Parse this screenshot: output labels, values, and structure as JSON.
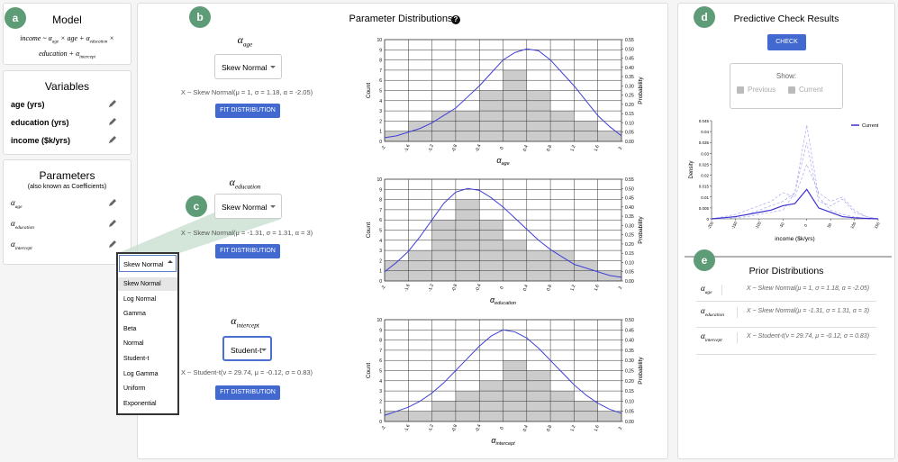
{
  "badges": [
    "a",
    "b",
    "c",
    "d",
    "e"
  ],
  "model": {
    "title": "Model",
    "formula": [
      {
        "text": "income ~ α"
      },
      {
        "text": "age",
        "sub": true
      },
      {
        "text": " × age + α"
      },
      {
        "text": "education",
        "sub": true
      },
      {
        "text": " × education + α"
      },
      {
        "text": "intercept",
        "sub": true
      }
    ]
  },
  "variables": {
    "title": "Variables",
    "items": [
      "age (yrs)",
      "education (yrs)",
      "income ($k/yrs)"
    ]
  },
  "parameters": {
    "title": "Parameters",
    "subtitle": "(also known as Coefficients)",
    "items": [
      {
        "symbol": "α",
        "sub": "age"
      },
      {
        "symbol": "α",
        "sub": "education"
      },
      {
        "symbol": "α",
        "sub": "intercept"
      }
    ]
  },
  "dropdown": {
    "selected": "Skew Normal",
    "options": [
      "Skew Normal",
      "Log Normal",
      "Gamma",
      "Beta",
      "Normal",
      "Student-t",
      "Log Gamma",
      "Uniform",
      "Exponential"
    ]
  },
  "distributions": {
    "title": "Parameter Distributions",
    "help": "?",
    "rows": [
      {
        "name": {
          "symbol": "α",
          "sub": "age"
        },
        "select": "Skew Normal",
        "formula": "X ~ Skew Normal(μ = 1, σ = 1.18, α = -2.05)",
        "button": "FIT DISTRIBUTION",
        "chart": {
          "type": "histogram",
          "bins": [
            -2,
            -1.6,
            -1.2,
            -0.8,
            -0.4,
            0,
            0.4,
            0.8,
            1.2,
            1.6,
            2
          ],
          "counts": [
            1,
            2,
            3,
            3,
            5,
            7,
            5,
            3,
            2,
            1
          ],
          "bar_color": "#cccccc",
          "xlim": [
            -2,
            2
          ],
          "xticks": [
            -2,
            -1.6,
            -1.2,
            -0.8,
            -0.4,
            0,
            0.4,
            0.8,
            1.2,
            1.6,
            2
          ],
          "x_label": {
            "symbol": "α",
            "sub": "age"
          },
          "ylim": [
            0,
            10
          ],
          "yticks": [
            0,
            1,
            2,
            3,
            4,
            5,
            6,
            7,
            8,
            9,
            10
          ],
          "y_label": "Count",
          "y2lim": [
            0,
            0.55
          ],
          "y2ticks": [
            {
              "value": 0,
              "label": "0.00"
            },
            {
              "value": 0.05,
              "label": "0.05"
            },
            {
              "value": 0.1,
              "label": "0.10"
            },
            {
              "value": 0.15,
              "label": "0.15"
            },
            {
              "value": 0.2,
              "label": "0.20"
            },
            {
              "value": 0.25,
              "label": "0.25"
            },
            {
              "value": 0.3,
              "label": "0.30"
            },
            {
              "value": 0.35,
              "label": "0.35"
            },
            {
              "value": 0.4,
              "label": "0.40"
            },
            {
              "value": 0.45,
              "label": "0.45"
            },
            {
              "value": 0.5,
              "label": "0.50"
            },
            {
              "value": 0.55,
              "label": "0.55"
            }
          ],
          "y2_label": "Probability",
          "curve": {
            "axis": "y2",
            "color": "#3f3fd8",
            "x": [
              -2,
              -1.8,
              -1.6,
              -1.4,
              -1.2,
              -1,
              -0.8,
              -0.6,
              -0.4,
              -0.2,
              0,
              0.2,
              0.4,
              0.6,
              0.8,
              1,
              1.2,
              1.4,
              1.6,
              1.8,
              2
            ],
            "values": [
              0.02,
              0.03,
              0.05,
              0.07,
              0.1,
              0.14,
              0.18,
              0.24,
              0.3,
              0.37,
              0.44,
              0.48,
              0.5,
              0.49,
              0.44,
              0.37,
              0.3,
              0.22,
              0.14,
              0.08,
              0.03
            ]
          }
        }
      },
      {
        "name": {
          "symbol": "α",
          "sub": "education"
        },
        "select": "Skew Normal",
        "formula": "X ~ Skew Normal(μ = -1.31, σ = 1.31, α = 3)",
        "button": "FIT DISTRIBUTION",
        "chart": {
          "type": "histogram",
          "bins": [
            -2,
            -1.6,
            -1.2,
            -0.8,
            -0.4,
            0,
            0.4,
            0.8,
            1.2,
            1.6,
            2
          ],
          "counts": [
            2,
            3,
            6,
            8,
            6,
            4,
            3,
            3,
            2,
            1
          ],
          "bar_color": "#cccccc",
          "xlim": [
            -2,
            2
          ],
          "xticks": [
            -2,
            -1.6,
            -1.2,
            -0.8,
            -0.4,
            0,
            0.4,
            0.8,
            1.2,
            1.6,
            2
          ],
          "x_label": {
            "symbol": "α",
            "sub": "education"
          },
          "ylim": [
            0,
            10
          ],
          "yticks": [
            0,
            1,
            2,
            3,
            4,
            5,
            6,
            7,
            8,
            9,
            10
          ],
          "y_label": "Count",
          "y2lim": [
            0,
            0.55
          ],
          "y2ticks": [
            {
              "value": 0,
              "label": "0.00"
            },
            {
              "value": 0.05,
              "label": "0.05"
            },
            {
              "value": 0.1,
              "label": "0.10"
            },
            {
              "value": 0.15,
              "label": "0.15"
            },
            {
              "value": 0.2,
              "label": "0.20"
            },
            {
              "value": 0.25,
              "label": "0.25"
            },
            {
              "value": 0.3,
              "label": "0.30"
            },
            {
              "value": 0.35,
              "label": "0.35"
            },
            {
              "value": 0.4,
              "label": "0.40"
            },
            {
              "value": 0.45,
              "label": "0.45"
            },
            {
              "value": 0.5,
              "label": "0.50"
            },
            {
              "value": 0.55,
              "label": "0.55"
            }
          ],
          "y2_label": "Probability",
          "curve": {
            "axis": "y2",
            "color": "#3f3fd8",
            "x": [
              -2,
              -1.8,
              -1.6,
              -1.4,
              -1.2,
              -1,
              -0.8,
              -0.6,
              -0.4,
              -0.2,
              0,
              0.2,
              0.4,
              0.6,
              0.8,
              1,
              1.2,
              1.4,
              1.6,
              1.8,
              2
            ],
            "values": [
              0.05,
              0.1,
              0.16,
              0.24,
              0.33,
              0.42,
              0.48,
              0.5,
              0.49,
              0.45,
              0.4,
              0.34,
              0.28,
              0.22,
              0.17,
              0.13,
              0.09,
              0.07,
              0.05,
              0.03,
              0.02
            ]
          }
        }
      },
      {
        "name": {
          "symbol": "α",
          "sub": "intercept"
        },
        "select": "Student-t",
        "formula": "X ~ Student-t(ν = 29.74, μ = -0.12, σ = 0.83)",
        "button": "FIT DISTRIBUTION",
        "chart": {
          "type": "histogram",
          "bins": [
            -2,
            -1.6,
            -1.2,
            -0.8,
            -0.4,
            0,
            0.4,
            0.8,
            1.2,
            1.6,
            2
          ],
          "counts": [
            1,
            1,
            2,
            3,
            4,
            6,
            5,
            3,
            2,
            1
          ],
          "bar_color": "#cccccc",
          "xlim": [
            -2,
            2
          ],
          "xticks": [
            -2,
            -1.6,
            -1.2,
            -0.8,
            -0.4,
            0,
            0.4,
            0.8,
            1.2,
            1.6,
            2
          ],
          "x_label": {
            "symbol": "α",
            "sub": "intercept"
          },
          "ylim": [
            0,
            10
          ],
          "yticks": [
            0,
            1,
            2,
            3,
            4,
            5,
            6,
            7,
            8,
            9,
            10
          ],
          "y_label": "Count",
          "y2lim": [
            0,
            0.5
          ],
          "y2ticks": [
            {
              "value": 0,
              "label": "0.00"
            },
            {
              "value": 0.05,
              "label": "0.05"
            },
            {
              "value": 0.1,
              "label": "0.10"
            },
            {
              "value": 0.15,
              "label": "0.15"
            },
            {
              "value": 0.2,
              "label": "0.20"
            },
            {
              "value": 0.25,
              "label": "0.25"
            },
            {
              "value": 0.3,
              "label": "0.30"
            },
            {
              "value": 0.35,
              "label": "0.35"
            },
            {
              "value": 0.4,
              "label": "0.40"
            },
            {
              "value": 0.45,
              "label": "0.45"
            },
            {
              "value": 0.5,
              "label": "0.50"
            }
          ],
          "y2_label": "Probability",
          "curve": {
            "axis": "y2",
            "color": "#3f3fd8",
            "x": [
              -2,
              -1.8,
              -1.6,
              -1.4,
              -1.2,
              -1,
              -0.8,
              -0.6,
              -0.4,
              -0.2,
              0,
              0.2,
              0.4,
              0.6,
              0.8,
              1,
              1.2,
              1.4,
              1.6,
              1.8,
              2
            ],
            "values": [
              0.03,
              0.05,
              0.07,
              0.1,
              0.14,
              0.19,
              0.25,
              0.31,
              0.37,
              0.42,
              0.45,
              0.44,
              0.41,
              0.36,
              0.3,
              0.24,
              0.18,
              0.13,
              0.09,
              0.06,
              0.04
            ]
          }
        }
      }
    ]
  },
  "predictive": {
    "title": "Predictive Check Results",
    "button": "CHECK",
    "show_label": "Show:",
    "checks": [
      "Previous",
      "Current"
    ],
    "chart": {
      "type": "line",
      "x": [
        -200,
        -175,
        -150,
        -125,
        -100,
        -75,
        -50,
        -25,
        0,
        25,
        50,
        75,
        100,
        125,
        150
      ],
      "series": [
        {
          "name": "Current",
          "color": "#3a2fd0",
          "values": [
            0,
            0.0005,
            0.001,
            0.002,
            0.003,
            0.004,
            0.006,
            0.007,
            0.0135,
            0.005,
            0.003,
            0.001,
            0.0005,
            0.0002,
            0
          ]
        }
      ],
      "samples": [
        [
          0,
          0,
          0.0005,
          0.001,
          0.002,
          0.003,
          0.004,
          0.012,
          0.043,
          0.01,
          0.004,
          0.002,
          0.001,
          0,
          0
        ],
        [
          0,
          0.0005,
          0.001,
          0.002,
          0.004,
          0.006,
          0.008,
          0.012,
          0.035,
          0.008,
          0.006,
          0.009,
          0.003,
          0.001,
          0
        ],
        [
          0,
          0.001,
          0.002,
          0.004,
          0.006,
          0.008,
          0.012,
          0.01,
          0.025,
          0.012,
          0.008,
          0.01,
          0.004,
          0.001,
          0
        ]
      ],
      "sample_color": "#aaaaee",
      "xlim": [
        -200,
        150
      ],
      "xticks": [
        -200,
        -150,
        -100,
        -50,
        0,
        50,
        100,
        150
      ],
      "x_label": "income ($k/yrs)",
      "ylim": [
        0,
        0.045
      ],
      "yticks": [
        0,
        0.005,
        0.01,
        0.015,
        0.02,
        0.025,
        0.03,
        0.035,
        0.04,
        0.045
      ],
      "y_label": "Density",
      "legend": "upper right"
    }
  },
  "prior": {
    "title": "Prior Distributions",
    "rows": [
      {
        "name": {
          "symbol": "α",
          "sub": "age"
        },
        "formula": "X ~ Skew Normal(μ = 1, σ = 1.18, α = -2.05)"
      },
      {
        "name": {
          "symbol": "α",
          "sub": "education"
        },
        "formula": "X ~ Skew Normal(μ = -1.31, σ = 1.31, α = 3)"
      },
      {
        "name": {
          "symbol": "α",
          "sub": "intercept"
        },
        "formula": "X ~ Student-t(ν = 29.74, μ = -0.12, σ = 0.83)"
      }
    ]
  }
}
